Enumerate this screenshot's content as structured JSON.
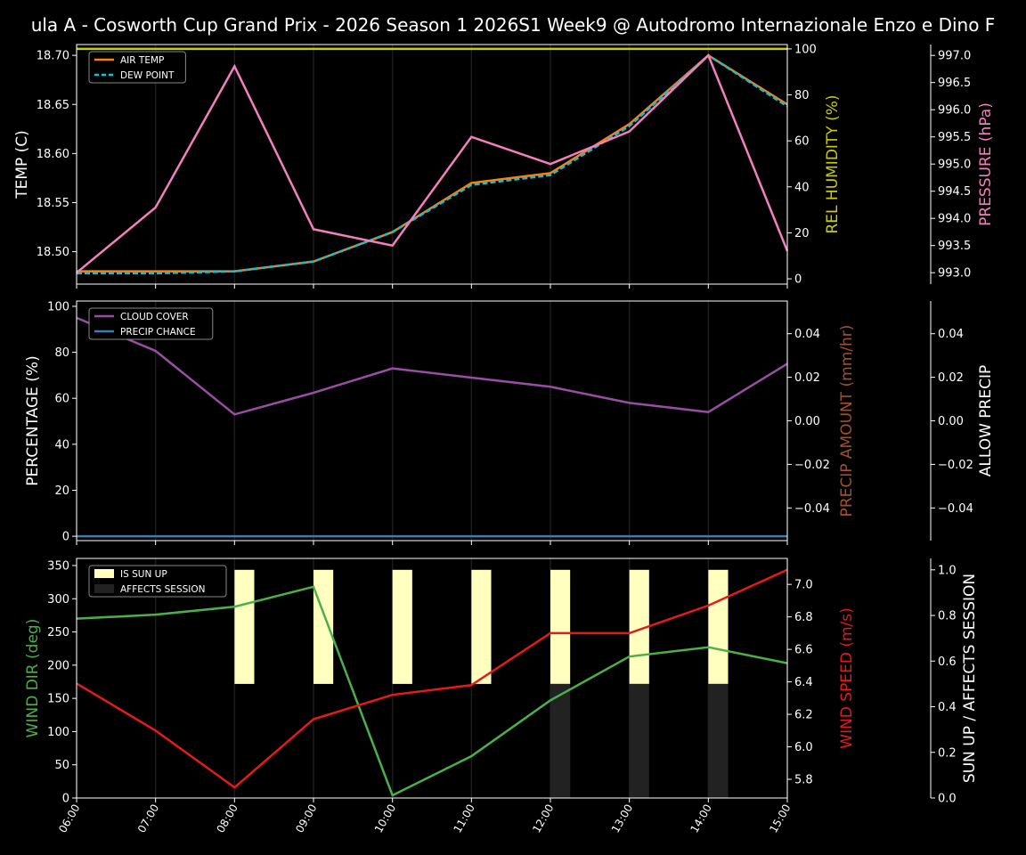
{
  "title": "ula A - Cosworth Cup Grand Prix - 2026 Season 1 2026S1 Week9 @ Autodromo Internazionale Enzo e Dino F",
  "chart_data": [
    {
      "type": "line",
      "x": [
        "06:00",
        "07:00",
        "08:00",
        "09:00",
        "10:00",
        "11:00",
        "12:00",
        "13:00",
        "14:00",
        "15:00"
      ],
      "ylabel": "TEMP (C)",
      "ylim": [
        18.467,
        18.711
      ],
      "yticks": [
        "18.50",
        "18.55",
        "18.60",
        "18.65",
        "18.70"
      ],
      "y2label": "REL HUMIDITY (%)",
      "y2lim": [
        -2.3,
        101.9
      ],
      "y2ticks": [
        "0",
        "20",
        "40",
        "60",
        "80",
        "100"
      ],
      "y3label": "PRESSURE (hPa)",
      "y3lim": [
        992.79,
        997.2
      ],
      "y3ticks": [
        "993.0",
        "993.5",
        "994.0",
        "994.5",
        "995.0",
        "995.5",
        "996.0",
        "996.5",
        "997.0"
      ],
      "legend": "top-left",
      "series": [
        {
          "name": "AIR TEMP",
          "axis": "y",
          "color": "#ff7f0e",
          "dash": false,
          "legend": true,
          "values": [
            18.48,
            18.48,
            18.48,
            18.49,
            18.52,
            18.57,
            18.58,
            18.63,
            18.7,
            18.65
          ]
        },
        {
          "name": "DEW POINT",
          "axis": "y",
          "color": "#17becf",
          "dash": true,
          "legend": true,
          "values": [
            18.478,
            18.478,
            18.48,
            18.49,
            18.52,
            18.568,
            18.578,
            18.628,
            18.7,
            18.648
          ]
        },
        {
          "axis": "y2",
          "color": "#cccc00",
          "dash": false,
          "legend": false,
          "values": [
            100,
            100,
            100,
            100,
            100,
            100,
            100,
            100,
            100,
            100
          ]
        },
        {
          "axis": "y3",
          "color": "#f47fbf",
          "dash": false,
          "legend": false,
          "values": [
            993.0,
            994.2,
            996.8,
            993.8,
            993.5,
            995.5,
            995.0,
            995.6,
            997.0,
            993.4
          ]
        }
      ],
      "colors": {
        "ylabel": "#ffffff",
        "y2label": "#cccc00",
        "y3label": "#f47fbf"
      }
    },
    {
      "type": "line",
      "x": [
        "06:00",
        "07:00",
        "08:00",
        "09:00",
        "10:00",
        "11:00",
        "12:00",
        "13:00",
        "14:00",
        "15:00"
      ],
      "ylabel": "PERCENTAGE (%)",
      "ylim": [
        -1.9,
        102.3
      ],
      "yticks": [
        "0",
        "20",
        "40",
        "60",
        "80",
        "100"
      ],
      "y2label": "PRECIP AMOUNT (mm/hr)",
      "y2lim": [
        -0.055,
        0.055
      ],
      "y2ticks": [
        "−0.04",
        "−0.02",
        "0.00",
        "0.02",
        "0.04"
      ],
      "y3label": "ALLOW PRECIP",
      "y3lim": [
        -0.055,
        0.055
      ],
      "y3ticks": [
        "−0.04",
        "−0.02",
        "0.00",
        "0.02",
        "0.04"
      ],
      "legend": "top-left",
      "series": [
        {
          "name": "CLOUD COVER",
          "axis": "y",
          "color": "#984ea3",
          "dash": false,
          "legend": true,
          "values": [
            95,
            80.6,
            53,
            62.4,
            73,
            69,
            65,
            58,
            54,
            75
          ]
        },
        {
          "name": "PRECIP CHANCE",
          "axis": "y",
          "color": "#377eb8",
          "dash": false,
          "legend": true,
          "values": [
            0,
            0,
            0,
            0,
            0,
            0,
            0,
            0,
            0,
            0
          ]
        }
      ],
      "colors": {
        "ylabel": "#ffffff",
        "y2label": "#a0522d",
        "y3label": "#ffffff"
      }
    },
    {
      "type": "line",
      "x": [
        "06:00",
        "07:00",
        "08:00",
        "09:00",
        "10:00",
        "11:00",
        "12:00",
        "13:00",
        "14:00",
        "15:00"
      ],
      "ylabel": "WIND DIR (deg)",
      "ylim": [
        0,
        360.7
      ],
      "yticks": [
        "0",
        "50",
        "100",
        "150",
        "200",
        "250",
        "300",
        "350"
      ],
      "y2label": "WIND SPEED (m/s)",
      "y2lim": [
        5.685,
        7.16
      ],
      "y2ticks": [
        "5.8",
        "6.0",
        "6.2",
        "6.4",
        "6.6",
        "6.8",
        "7.0"
      ],
      "y3label": "SUN UP / AFFECTS SESSION",
      "y3lim": [
        0,
        1.05
      ],
      "y3ticks": [
        "0.0",
        "0.2",
        "0.4",
        "0.6",
        "0.8",
        "1.0"
      ],
      "legend": "top-left",
      "bars": [
        {
          "name": "IS SUN UP",
          "color": "#ffffc0",
          "values": [
            0,
            0,
            1,
            1,
            1,
            1,
            1,
            1,
            1,
            0
          ]
        },
        {
          "name": "AFFECTS SESSION",
          "color": "#222222",
          "values": [
            0,
            0,
            0,
            0,
            0,
            0,
            1,
            1,
            1,
            0
          ]
        }
      ],
      "series": [
        {
          "axis": "y",
          "color": "#4daf4a",
          "dash": false,
          "legend": false,
          "values": [
            270,
            276,
            288,
            318,
            4,
            63,
            147,
            213,
            227,
            203
          ]
        },
        {
          "axis": "y2",
          "color": "#e41a1c",
          "dash": false,
          "legend": false,
          "values": [
            6.39,
            6.1,
            5.75,
            6.17,
            6.32,
            6.38,
            6.7,
            6.7,
            6.87,
            7.09
          ]
        }
      ],
      "colors": {
        "ylabel": "#4daf4a",
        "y2label": "#e41a1c",
        "y3label": "#ffffff"
      }
    }
  ]
}
